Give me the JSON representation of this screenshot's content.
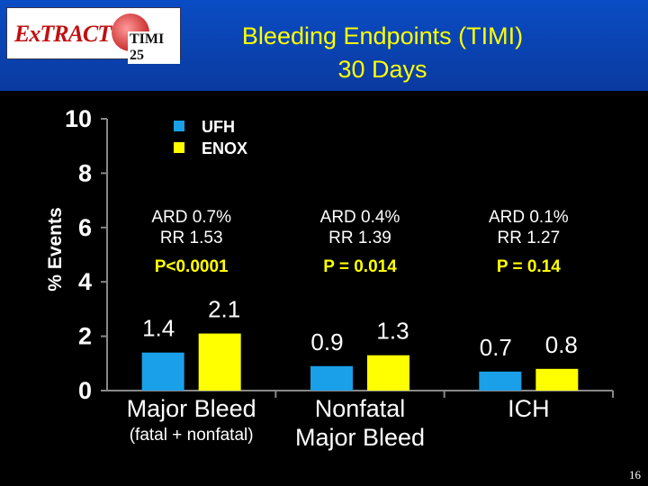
{
  "header": {
    "logo_text": "ExTRACT",
    "logo_sub": "TIMI 25",
    "title_line1": "Bleeding Endpoints (TIMI)",
    "title_line2": "30 Days"
  },
  "slide_number": "16",
  "chart_data": {
    "type": "bar",
    "title": "Bleeding Endpoints (TIMI) 30 Days",
    "ylabel": "% Events",
    "ylim": [
      0,
      10
    ],
    "yticks": [
      "0",
      "2",
      "4",
      "6",
      "8",
      "10"
    ],
    "categories": [
      "Major Bleed",
      "Nonfatal Major Bleed",
      "ICH"
    ],
    "category_sublabels": [
      "(fatal + nonfatal)",
      "",
      ""
    ],
    "category_lines": [
      [
        "Major Bleed"
      ],
      [
        "Nonfatal",
        "Major Bleed"
      ],
      [
        "ICH"
      ]
    ],
    "series": [
      {
        "name": "UFH",
        "values": [
          1.4,
          0.9,
          0.7
        ],
        "labels": [
          "1.4",
          "0.9",
          "0.7"
        ],
        "color": "#1aa0e8"
      },
      {
        "name": "ENOX",
        "values": [
          2.1,
          1.3,
          0.8
        ],
        "labels": [
          "2.1",
          "1.3",
          "0.8"
        ],
        "color": "#ffff00"
      }
    ],
    "annotations": [
      {
        "ard": "ARD 0.7%",
        "rr": "RR 1.53",
        "p": "P<0.0001"
      },
      {
        "ard": "ARD 0.4%",
        "rr": "RR 1.39",
        "p": "P = 0.014"
      },
      {
        "ard": "ARD 0.1%",
        "rr": "RR 1.27",
        "p": "P = 0.14"
      }
    ],
    "legend_position": "top-left",
    "grid": false
  }
}
